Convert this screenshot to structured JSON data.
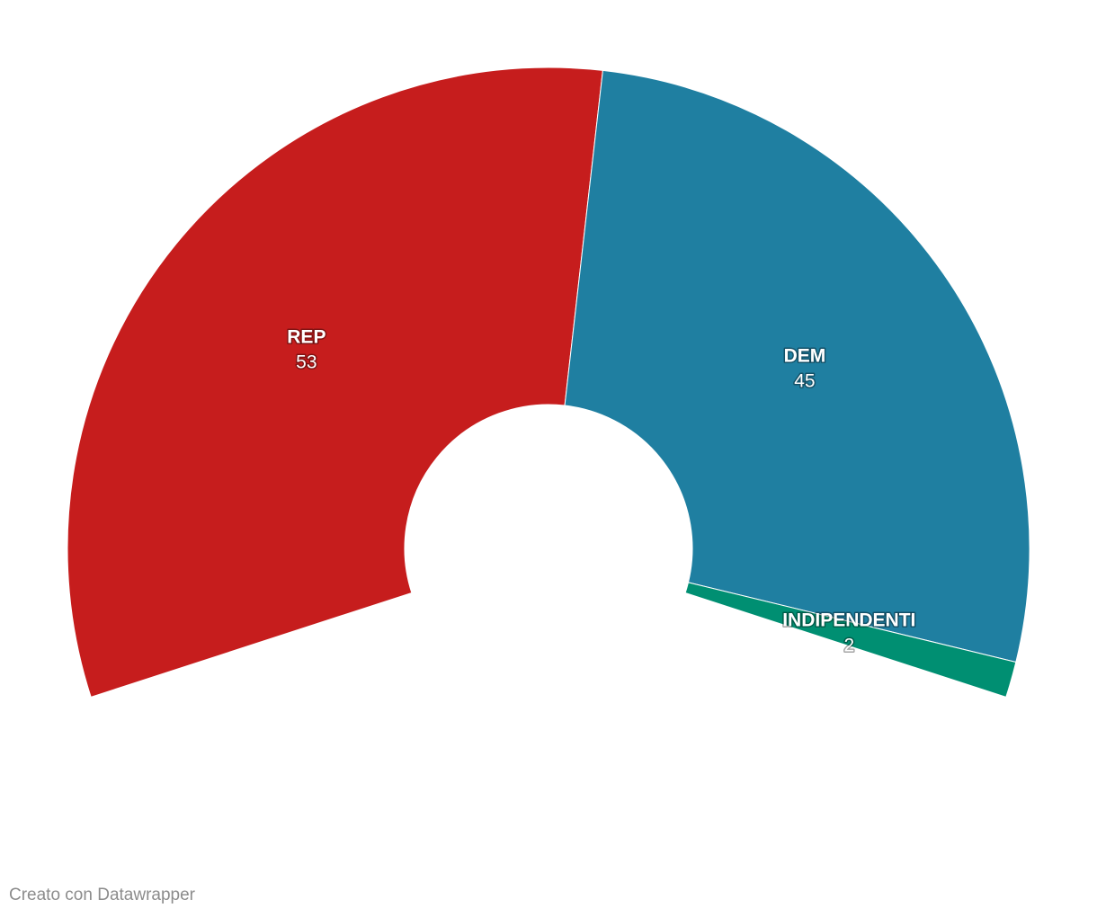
{
  "chart_data": {
    "type": "pie",
    "categories": [
      "REP",
      "DEM",
      "INDIPENDENTI"
    ],
    "values": [
      53,
      45,
      2
    ],
    "colors": [
      "#c61d1d",
      "#1f7fa1",
      "#008f72"
    ]
  },
  "footer": {
    "credit": "Creato con Datawrapper"
  }
}
